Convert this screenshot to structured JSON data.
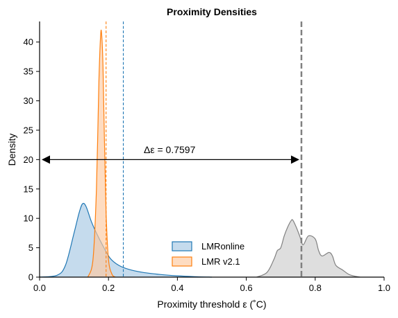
{
  "chart_data": {
    "type": "area",
    "title": "Proximity Densities",
    "xlabel": "Proximity threshold ε (˚C)",
    "ylabel": "Density",
    "xlim": [
      0.0,
      1.0
    ],
    "ylim": [
      0,
      43.5
    ],
    "xticks": [
      "0.0",
      "0.2",
      "0.4",
      "0.6",
      "0.8",
      "1.0"
    ],
    "xtick_values": [
      0.0,
      0.2,
      0.4,
      0.6,
      0.8,
      1.0
    ],
    "yticks": [
      "0",
      "5",
      "10",
      "15",
      "20",
      "25",
      "30",
      "35",
      "40"
    ],
    "ytick_values": [
      0,
      5,
      10,
      15,
      20,
      25,
      30,
      35,
      40
    ],
    "grid": false,
    "legend_position": "bottom-center",
    "series": [
      {
        "name": "LMRonline",
        "color": "#1f77b4",
        "fill": "#a6c8e3",
        "x": [
          0.0,
          0.05,
          0.075,
          0.1,
          0.115,
          0.125,
          0.135,
          0.15,
          0.165,
          0.185,
          0.205,
          0.23,
          0.26,
          0.3,
          0.35,
          0.4,
          0.45,
          0.5
        ],
        "values": [
          0.0,
          0.3,
          2.0,
          7.5,
          11.0,
          12.5,
          12.0,
          9.5,
          7.5,
          5.2,
          3.2,
          2.0,
          1.3,
          0.8,
          0.45,
          0.22,
          0.08,
          0.0
        ],
        "marker_x": 0.243
      },
      {
        "name": "LMR v2.1",
        "color": "#ff7f0e",
        "fill": "#fdc9a0",
        "x": [
          0.14,
          0.155,
          0.165,
          0.172,
          0.177,
          0.18,
          0.184,
          0.188,
          0.193,
          0.2,
          0.21,
          0.22
        ],
        "values": [
          0.0,
          3.0,
          15.0,
          33.0,
          41.0,
          41.4,
          36.0,
          24.0,
          11.0,
          3.0,
          0.5,
          0.0
        ],
        "marker_x": 0.193
      },
      {
        "name": "",
        "color": "#808080",
        "fill": "#c8c8c8",
        "x": [
          0.63,
          0.66,
          0.68,
          0.69,
          0.7,
          0.71,
          0.72,
          0.73,
          0.735,
          0.745,
          0.755,
          0.765,
          0.78,
          0.8,
          0.81,
          0.82,
          0.84,
          0.85,
          0.86,
          0.88,
          0.9,
          0.93
        ],
        "values": [
          0.0,
          0.8,
          3.0,
          4.5,
          5.0,
          7.0,
          8.5,
          9.6,
          9.7,
          8.5,
          7.0,
          5.5,
          7.0,
          6.5,
          4.5,
          3.6,
          4.2,
          3.6,
          2.0,
          1.2,
          0.4,
          0.0
        ],
        "marker_x": 0.76
      }
    ],
    "annotation": {
      "text": "Δε =  0.7597",
      "arrow_y": 20,
      "x_start": 0.0,
      "x_end": 0.76
    }
  },
  "legend": {
    "items": [
      {
        "label": "LMRonline",
        "color": "#1f77b4",
        "fill": "#a6c8e3"
      },
      {
        "label": "LMR v2.1",
        "color": "#ff7f0e",
        "fill": "#fdc9a0"
      }
    ]
  }
}
